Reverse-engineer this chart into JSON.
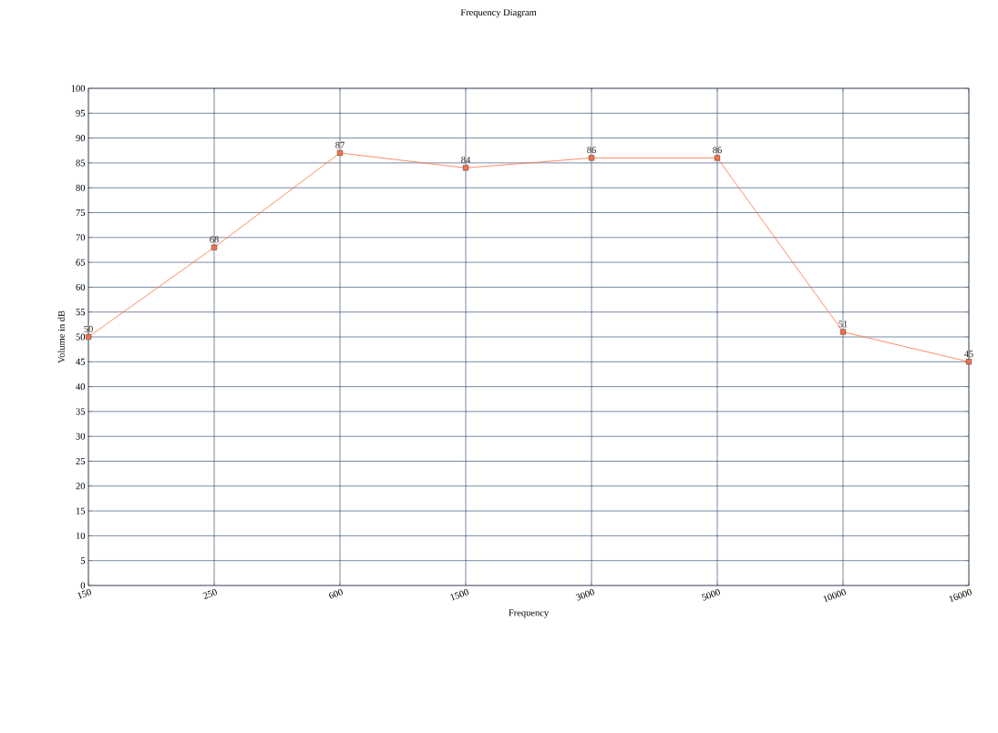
{
  "chart_data": {
    "type": "line",
    "title": "Frequency Diagram",
    "xlabel": "Frequency",
    "ylabel": "Volume in dB",
    "categories": [
      "150",
      "250",
      "600",
      "1500",
      "3000",
      "5000",
      "10000",
      "16000"
    ],
    "values": [
      50,
      68,
      87,
      84,
      86,
      86,
      51,
      45
    ],
    "color": "#ff7043",
    "ylim": [
      0,
      100
    ],
    "yticks": [
      0,
      5,
      10,
      15,
      20,
      25,
      30,
      35,
      40,
      45,
      50,
      55,
      60,
      65,
      70,
      75,
      80,
      85,
      90,
      95,
      100
    ],
    "grid": true,
    "marker": "square",
    "data_labels": true
  }
}
